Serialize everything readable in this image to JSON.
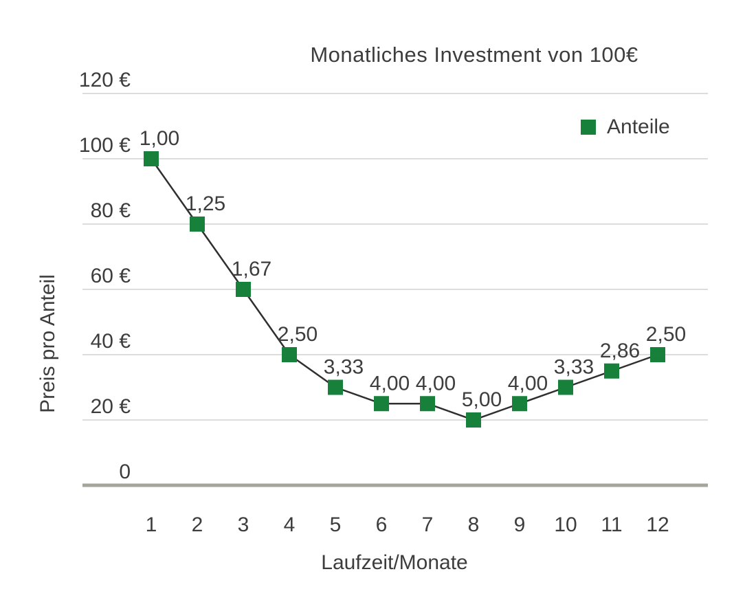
{
  "title": "Monatliches Investment von 100€",
  "legend": {
    "label": "Anteile"
  },
  "colors": {
    "text": "#3d3d3d",
    "gridline": "#c6c6c6",
    "zero_axis": "#a5a59c",
    "line": "#2f2f2f",
    "marker_green": "#17813c"
  },
  "chart_data": {
    "type": "line",
    "title": "Monatliches Investment von 100€",
    "xlabel": "Laufzeit/Monate",
    "ylabel": "Preis pro Anteil",
    "x": [
      1,
      2,
      3,
      4,
      5,
      6,
      7,
      8,
      9,
      10,
      11,
      12
    ],
    "series": [
      {
        "name": "Anteile",
        "values": [
          100,
          80,
          60,
          40,
          30,
          25,
          25,
          20,
          25,
          30,
          35,
          40
        ],
        "point_labels": [
          "1,00",
          "1,25",
          "1,67",
          "2,50",
          "3,33",
          "4,00",
          "4,00",
          "5,00",
          "4,00",
          "3,33",
          "2,86",
          "2,50"
        ],
        "marker": "square"
      }
    ],
    "y_ticks": [
      {
        "value": 0,
        "label": "0"
      },
      {
        "value": 20,
        "label": "20 €"
      },
      {
        "value": 40,
        "label": "40 €"
      },
      {
        "value": 60,
        "label": "60 €"
      },
      {
        "value": 80,
        "label": "80 €"
      },
      {
        "value": 100,
        "label": "100 €"
      },
      {
        "value": 120,
        "label": "120 €"
      }
    ],
    "ylim": [
      0,
      120
    ],
    "grid": true,
    "legend_position": "top-right"
  }
}
